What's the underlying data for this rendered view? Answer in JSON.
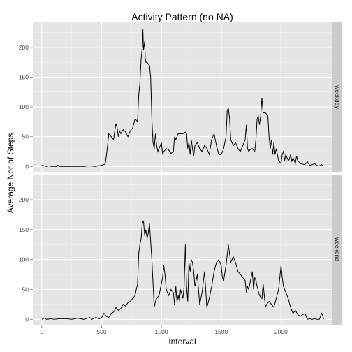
{
  "chart_data": {
    "type": "line",
    "title": "Activity Pattern (no NA)",
    "xlabel": "Interval",
    "ylabel": "Average Nbr of Steps",
    "xlim": [
      -75,
      2430
    ],
    "ylim": [
      -9,
      242
    ],
    "x_ticks": [
      0,
      500,
      1000,
      1500,
      2000
    ],
    "y_ticks": [
      0,
      50,
      100,
      150,
      200
    ],
    "grid": true,
    "facets": [
      "weekday",
      "weekend"
    ],
    "series": [
      {
        "facet": "weekday",
        "points": [
          [
            0,
            2
          ],
          [
            20,
            1
          ],
          [
            40,
            0
          ],
          [
            60,
            1
          ],
          [
            80,
            0
          ],
          [
            120,
            0
          ],
          [
            135,
            2
          ],
          [
            150,
            0
          ],
          [
            200,
            0
          ],
          [
            250,
            0
          ],
          [
            300,
            0
          ],
          [
            350,
            0
          ],
          [
            400,
            1
          ],
          [
            450,
            0
          ],
          [
            500,
            2
          ],
          [
            515,
            3
          ],
          [
            530,
            4
          ],
          [
            540,
            18
          ],
          [
            550,
            35
          ],
          [
            560,
            55
          ],
          [
            580,
            50
          ],
          [
            600,
            45
          ],
          [
            610,
            60
          ],
          [
            620,
            72
          ],
          [
            630,
            65
          ],
          [
            640,
            50
          ],
          [
            650,
            60
          ],
          [
            660,
            55
          ],
          [
            680,
            62
          ],
          [
            700,
            58
          ],
          [
            720,
            50
          ],
          [
            740,
            60
          ],
          [
            760,
            65
          ],
          [
            780,
            80
          ],
          [
            800,
            75
          ],
          [
            810,
            120
          ],
          [
            820,
            140
          ],
          [
            830,
            180
          ],
          [
            840,
            200
          ],
          [
            845,
            230
          ],
          [
            850,
            195
          ],
          [
            860,
            210
          ],
          [
            865,
            180
          ],
          [
            870,
            175
          ],
          [
            880,
            175
          ],
          [
            890,
            172
          ],
          [
            900,
            170
          ],
          [
            910,
            150
          ],
          [
            920,
            80
          ],
          [
            930,
            40
          ],
          [
            940,
            30
          ],
          [
            950,
            55
          ],
          [
            960,
            35
          ],
          [
            970,
            25
          ],
          [
            980,
            30
          ],
          [
            990,
            35
          ],
          [
            1000,
            40
          ],
          [
            1010,
            20
          ],
          [
            1020,
            25
          ],
          [
            1040,
            30
          ],
          [
            1060,
            28
          ],
          [
            1080,
            22
          ],
          [
            1100,
            25
          ],
          [
            1110,
            50
          ],
          [
            1120,
            45
          ],
          [
            1140,
            55
          ],
          [
            1160,
            55
          ],
          [
            1180,
            55
          ],
          [
            1200,
            58
          ],
          [
            1210,
            55
          ],
          [
            1220,
            30
          ],
          [
            1230,
            40
          ],
          [
            1240,
            20
          ],
          [
            1250,
            45
          ],
          [
            1260,
            30
          ],
          [
            1270,
            18
          ],
          [
            1280,
            35
          ],
          [
            1300,
            40
          ],
          [
            1320,
            30
          ],
          [
            1340,
            25
          ],
          [
            1360,
            35
          ],
          [
            1380,
            30
          ],
          [
            1400,
            20
          ],
          [
            1420,
            45
          ],
          [
            1440,
            55
          ],
          [
            1460,
            35
          ],
          [
            1480,
            20
          ],
          [
            1500,
            20
          ],
          [
            1520,
            30
          ],
          [
            1540,
            50
          ],
          [
            1550,
            95
          ],
          [
            1560,
            97
          ],
          [
            1570,
            80
          ],
          [
            1580,
            45
          ],
          [
            1600,
            35
          ],
          [
            1620,
            40
          ],
          [
            1640,
            30
          ],
          [
            1660,
            25
          ],
          [
            1680,
            35
          ],
          [
            1700,
            45
          ],
          [
            1710,
            70
          ],
          [
            1720,
            30
          ],
          [
            1730,
            25
          ],
          [
            1740,
            28
          ],
          [
            1760,
            30
          ],
          [
            1780,
            25
          ],
          [
            1790,
            45
          ],
          [
            1800,
            80
          ],
          [
            1810,
            85
          ],
          [
            1820,
            70
          ],
          [
            1830,
            85
          ],
          [
            1840,
            115
          ],
          [
            1850,
            90
          ],
          [
            1870,
            90
          ],
          [
            1890,
            85
          ],
          [
            1900,
            50
          ],
          [
            1910,
            30
          ],
          [
            1920,
            45
          ],
          [
            1930,
            20
          ],
          [
            1940,
            40
          ],
          [
            1950,
            20
          ],
          [
            1960,
            30
          ],
          [
            1980,
            10
          ],
          [
            2000,
            5
          ],
          [
            2010,
            20
          ],
          [
            2020,
            25
          ],
          [
            2030,
            10
          ],
          [
            2040,
            20
          ],
          [
            2050,
            15
          ],
          [
            2060,
            10
          ],
          [
            2070,
            12
          ],
          [
            2080,
            20
          ],
          [
            2090,
            8
          ],
          [
            2100,
            15
          ],
          [
            2110,
            10
          ],
          [
            2120,
            5
          ],
          [
            2130,
            18
          ],
          [
            2140,
            10
          ],
          [
            2160,
            5
          ],
          [
            2200,
            3
          ],
          [
            2220,
            8
          ],
          [
            2240,
            2
          ],
          [
            2260,
            3
          ],
          [
            2280,
            5
          ],
          [
            2300,
            2
          ],
          [
            2320,
            1
          ],
          [
            2340,
            3
          ],
          [
            2355,
            1
          ]
        ]
      },
      {
        "facet": "weekend",
        "points": [
          [
            0,
            0
          ],
          [
            20,
            2
          ],
          [
            40,
            0
          ],
          [
            80,
            1
          ],
          [
            100,
            0
          ],
          [
            150,
            1
          ],
          [
            200,
            1
          ],
          [
            250,
            0
          ],
          [
            300,
            2
          ],
          [
            350,
            0
          ],
          [
            400,
            3
          ],
          [
            420,
            0
          ],
          [
            450,
            3
          ],
          [
            480,
            1
          ],
          [
            500,
            3
          ],
          [
            520,
            10
          ],
          [
            540,
            5
          ],
          [
            560,
            3
          ],
          [
            580,
            10
          ],
          [
            600,
            12
          ],
          [
            610,
            15
          ],
          [
            620,
            20
          ],
          [
            640,
            15
          ],
          [
            660,
            18
          ],
          [
            680,
            25
          ],
          [
            700,
            22
          ],
          [
            720,
            28
          ],
          [
            740,
            30
          ],
          [
            760,
            35
          ],
          [
            780,
            40
          ],
          [
            790,
            50
          ],
          [
            800,
            58
          ],
          [
            810,
            110
          ],
          [
            820,
            125
          ],
          [
            830,
            135
          ],
          [
            840,
            160
          ],
          [
            850,
            165
          ],
          [
            860,
            140
          ],
          [
            870,
            150
          ],
          [
            880,
            135
          ],
          [
            890,
            145
          ],
          [
            900,
            160
          ],
          [
            910,
            130
          ],
          [
            920,
            100
          ],
          [
            930,
            60
          ],
          [
            940,
            20
          ],
          [
            950,
            30
          ],
          [
            960,
            35
          ],
          [
            980,
            40
          ],
          [
            1000,
            60
          ],
          [
            1010,
            70
          ],
          [
            1020,
            90
          ],
          [
            1030,
            75
          ],
          [
            1040,
            50
          ],
          [
            1050,
            45
          ],
          [
            1060,
            40
          ],
          [
            1080,
            50
          ],
          [
            1100,
            45
          ],
          [
            1110,
            25
          ],
          [
            1120,
            55
          ],
          [
            1130,
            30
          ],
          [
            1140,
            40
          ],
          [
            1150,
            30
          ],
          [
            1160,
            50
          ],
          [
            1180,
            35
          ],
          [
            1190,
            55
          ],
          [
            1200,
            125
          ],
          [
            1210,
            55
          ],
          [
            1220,
            30
          ],
          [
            1230,
            95
          ],
          [
            1240,
            80
          ],
          [
            1250,
            100
          ],
          [
            1260,
            95
          ],
          [
            1270,
            80
          ],
          [
            1280,
            55
          ],
          [
            1300,
            75
          ],
          [
            1320,
            25
          ],
          [
            1340,
            45
          ],
          [
            1360,
            80
          ],
          [
            1380,
            20
          ],
          [
            1400,
            35
          ],
          [
            1420,
            55
          ],
          [
            1440,
            80
          ],
          [
            1460,
            95
          ],
          [
            1480,
            100
          ],
          [
            1500,
            90
          ],
          [
            1510,
            70
          ],
          [
            1520,
            65
          ],
          [
            1540,
            90
          ],
          [
            1560,
            125
          ],
          [
            1570,
            110
          ],
          [
            1580,
            95
          ],
          [
            1600,
            105
          ],
          [
            1620,
            95
          ],
          [
            1640,
            80
          ],
          [
            1660,
            75
          ],
          [
            1680,
            70
          ],
          [
            1700,
            65
          ],
          [
            1710,
            45
          ],
          [
            1720,
            55
          ],
          [
            1730,
            50
          ],
          [
            1740,
            60
          ],
          [
            1760,
            80
          ],
          [
            1770,
            50
          ],
          [
            1780,
            70
          ],
          [
            1790,
            65
          ],
          [
            1800,
            55
          ],
          [
            1820,
            40
          ],
          [
            1840,
            35
          ],
          [
            1850,
            60
          ],
          [
            1860,
            40
          ],
          [
            1870,
            20
          ],
          [
            1880,
            25
          ],
          [
            1900,
            30
          ],
          [
            1920,
            25
          ],
          [
            1940,
            20
          ],
          [
            1960,
            35
          ],
          [
            1980,
            50
          ],
          [
            2000,
            90
          ],
          [
            2010,
            70
          ],
          [
            2020,
            55
          ],
          [
            2040,
            45
          ],
          [
            2060,
            35
          ],
          [
            2080,
            20
          ],
          [
            2100,
            10
          ],
          [
            2120,
            15
          ],
          [
            2140,
            8
          ],
          [
            2160,
            5
          ],
          [
            2200,
            10
          ],
          [
            2220,
            0
          ],
          [
            2240,
            1
          ],
          [
            2260,
            0
          ],
          [
            2280,
            1
          ],
          [
            2300,
            0
          ],
          [
            2320,
            0
          ],
          [
            2340,
            10
          ],
          [
            2350,
            5
          ],
          [
            2355,
            0
          ]
        ]
      }
    ]
  }
}
